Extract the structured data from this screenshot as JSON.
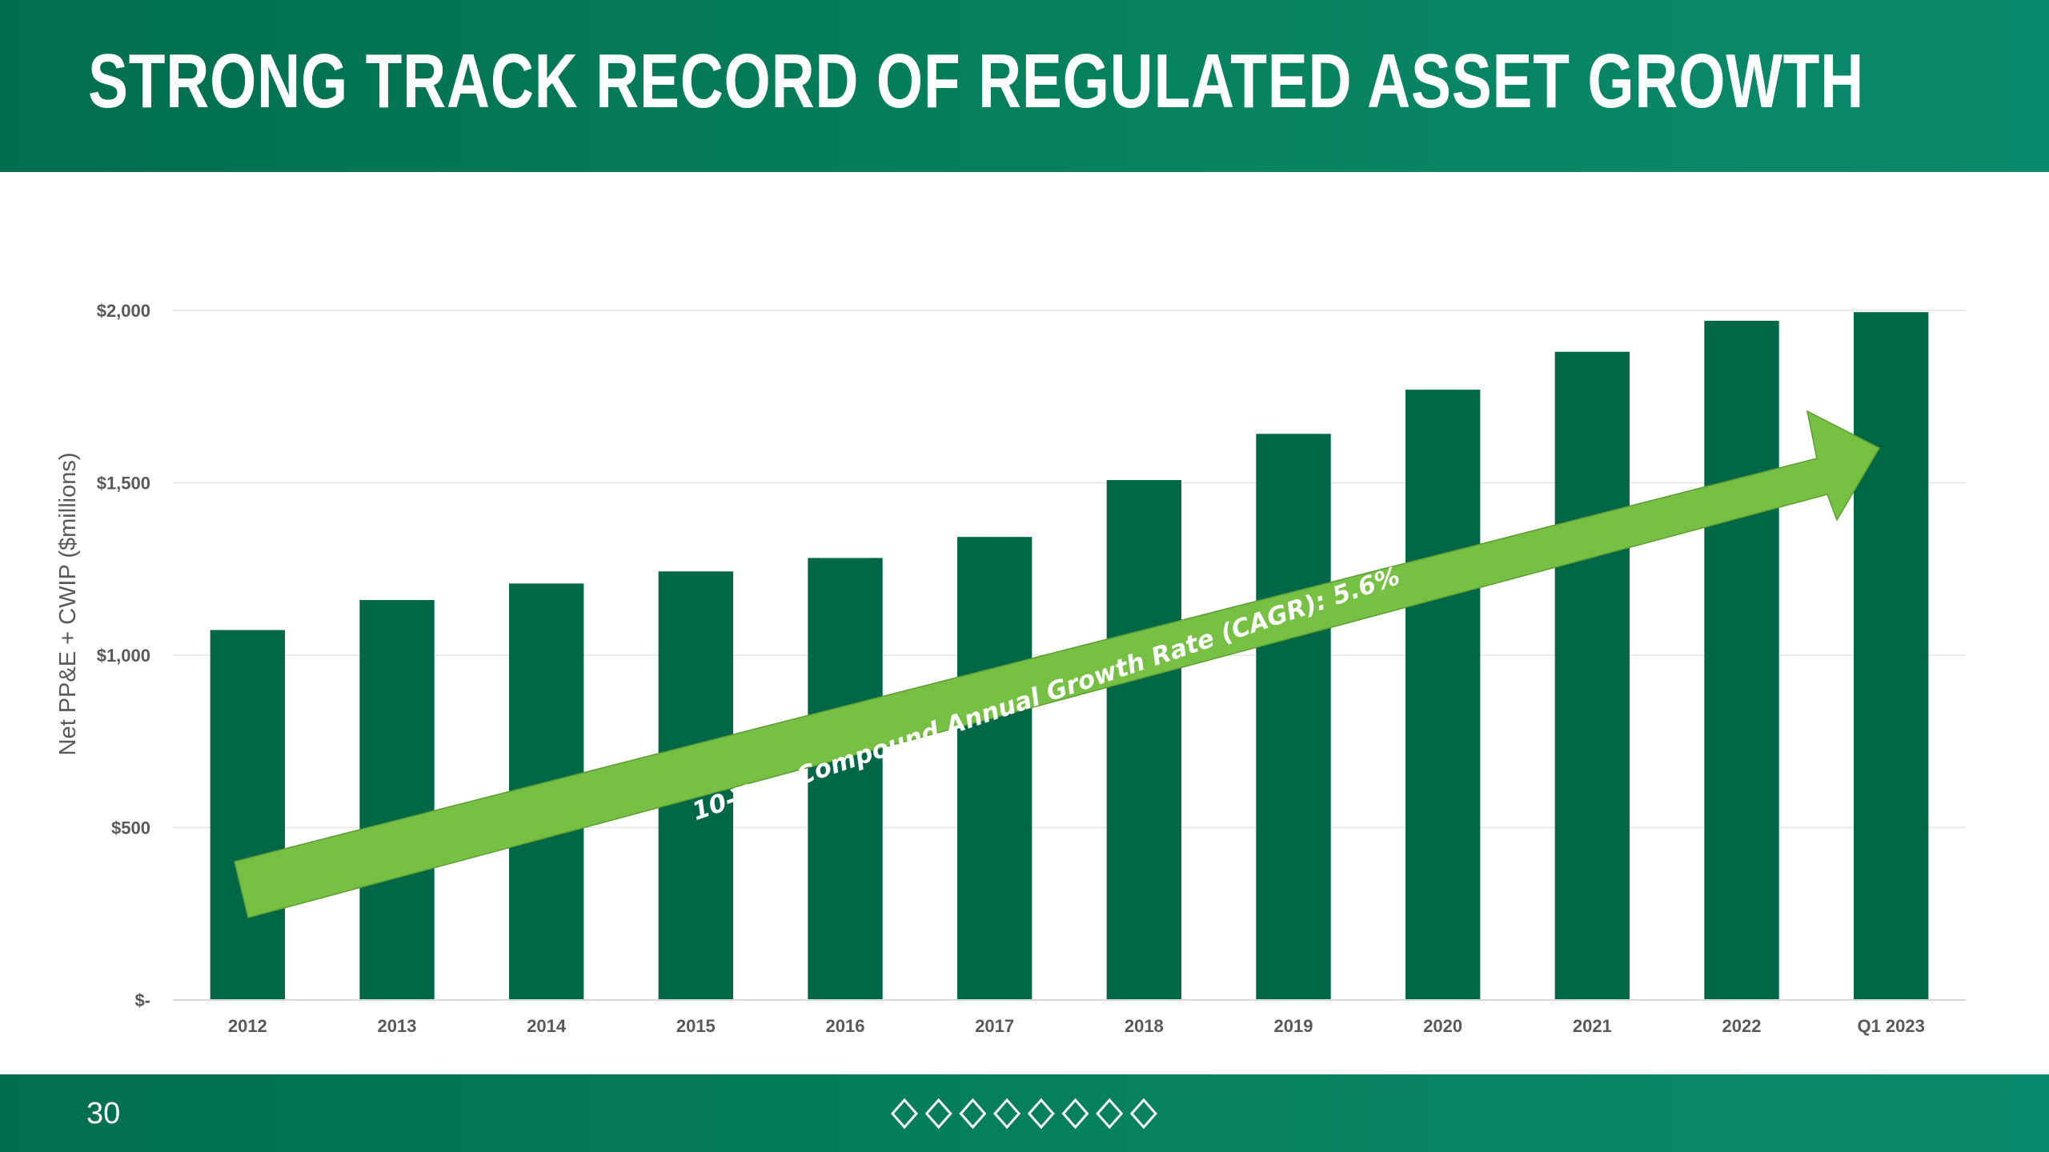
{
  "header": {
    "title": "STRONG TRACK RECORD OF REGULATED ASSET GROWTH"
  },
  "footer": {
    "page_number": "30"
  },
  "colors": {
    "brand": "#006a47",
    "bar": "#006847",
    "arrow": "#76c043",
    "header_bg": "#07835f",
    "grid": "#e4e4e4",
    "text": "#595959"
  },
  "chart_data": {
    "type": "bar",
    "categories": [
      "2012",
      "2013",
      "2014",
      "2015",
      "2016",
      "2017",
      "2018",
      "2019",
      "2020",
      "2021",
      "2022",
      "Q1 2023"
    ],
    "series": [
      {
        "values": [
          1073,
          1160,
          1208,
          1243,
          1282,
          1343,
          1508,
          1642,
          1770,
          1880,
          1970,
          1995
        ]
      }
    ],
    "ylabel": "Net PP&E + CWIP ($millions)",
    "ylim": [
      0,
      2000
    ],
    "yticks": [
      0,
      500,
      1000,
      1500,
      2000
    ],
    "ytick_labels": [
      "$-",
      "$500",
      "$1,000",
      "$1,500",
      "$2,000"
    ],
    "grid": true,
    "legend": "none",
    "annotation": {
      "text": "10-Year Compound Annual Growth Rate (CAGR): 5.6%",
      "style": "upward arrow"
    }
  }
}
